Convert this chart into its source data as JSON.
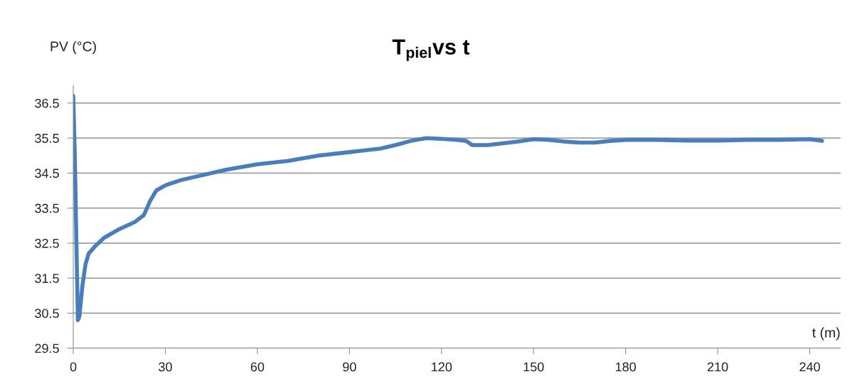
{
  "chart_data": {
    "type": "line",
    "title": "T$_{piel}$vs t",
    "xlabel": "t (m)",
    "ylabel": "PV (°C)",
    "xlim": [
      0,
      250
    ],
    "xticks": [
      0,
      30,
      60,
      90,
      120,
      150,
      180,
      210,
      240
    ],
    "ylim": [
      29.5,
      37
    ],
    "yticks": [
      29.5,
      30.5,
      31.5,
      32.5,
      33.5,
      34.5,
      35.5,
      36.5
    ],
    "grid": "y",
    "marker": "none",
    "line_style": "solid",
    "series": [
      {
        "color": "#4a7ebb",
        "x": [
          0,
          0.5,
          1.5,
          2,
          3,
          4,
          5,
          7,
          10,
          15,
          20,
          23,
          25,
          27,
          30,
          35,
          40,
          50,
          60,
          70,
          80,
          90,
          100,
          105,
          110,
          115,
          120,
          125,
          128,
          130,
          135,
          140,
          145,
          150,
          155,
          160,
          165,
          170,
          175,
          180,
          190,
          200,
          210,
          220,
          230,
          240,
          244
        ],
        "values": [
          36.7,
          35,
          30.3,
          30.4,
          31.3,
          31.9,
          32.2,
          32.4,
          32.65,
          32.9,
          33.1,
          33.3,
          33.7,
          34.0,
          34.15,
          34.3,
          34.4,
          34.6,
          34.75,
          34.85,
          35.0,
          35.1,
          35.2,
          35.3,
          35.42,
          35.5,
          35.48,
          35.45,
          35.42,
          35.3,
          35.3,
          35.35,
          35.4,
          35.47,
          35.45,
          35.4,
          35.37,
          35.37,
          35.42,
          35.45,
          35.45,
          35.43,
          35.43,
          35.45,
          35.45,
          35.47,
          35.42
        ]
      }
    ]
  }
}
